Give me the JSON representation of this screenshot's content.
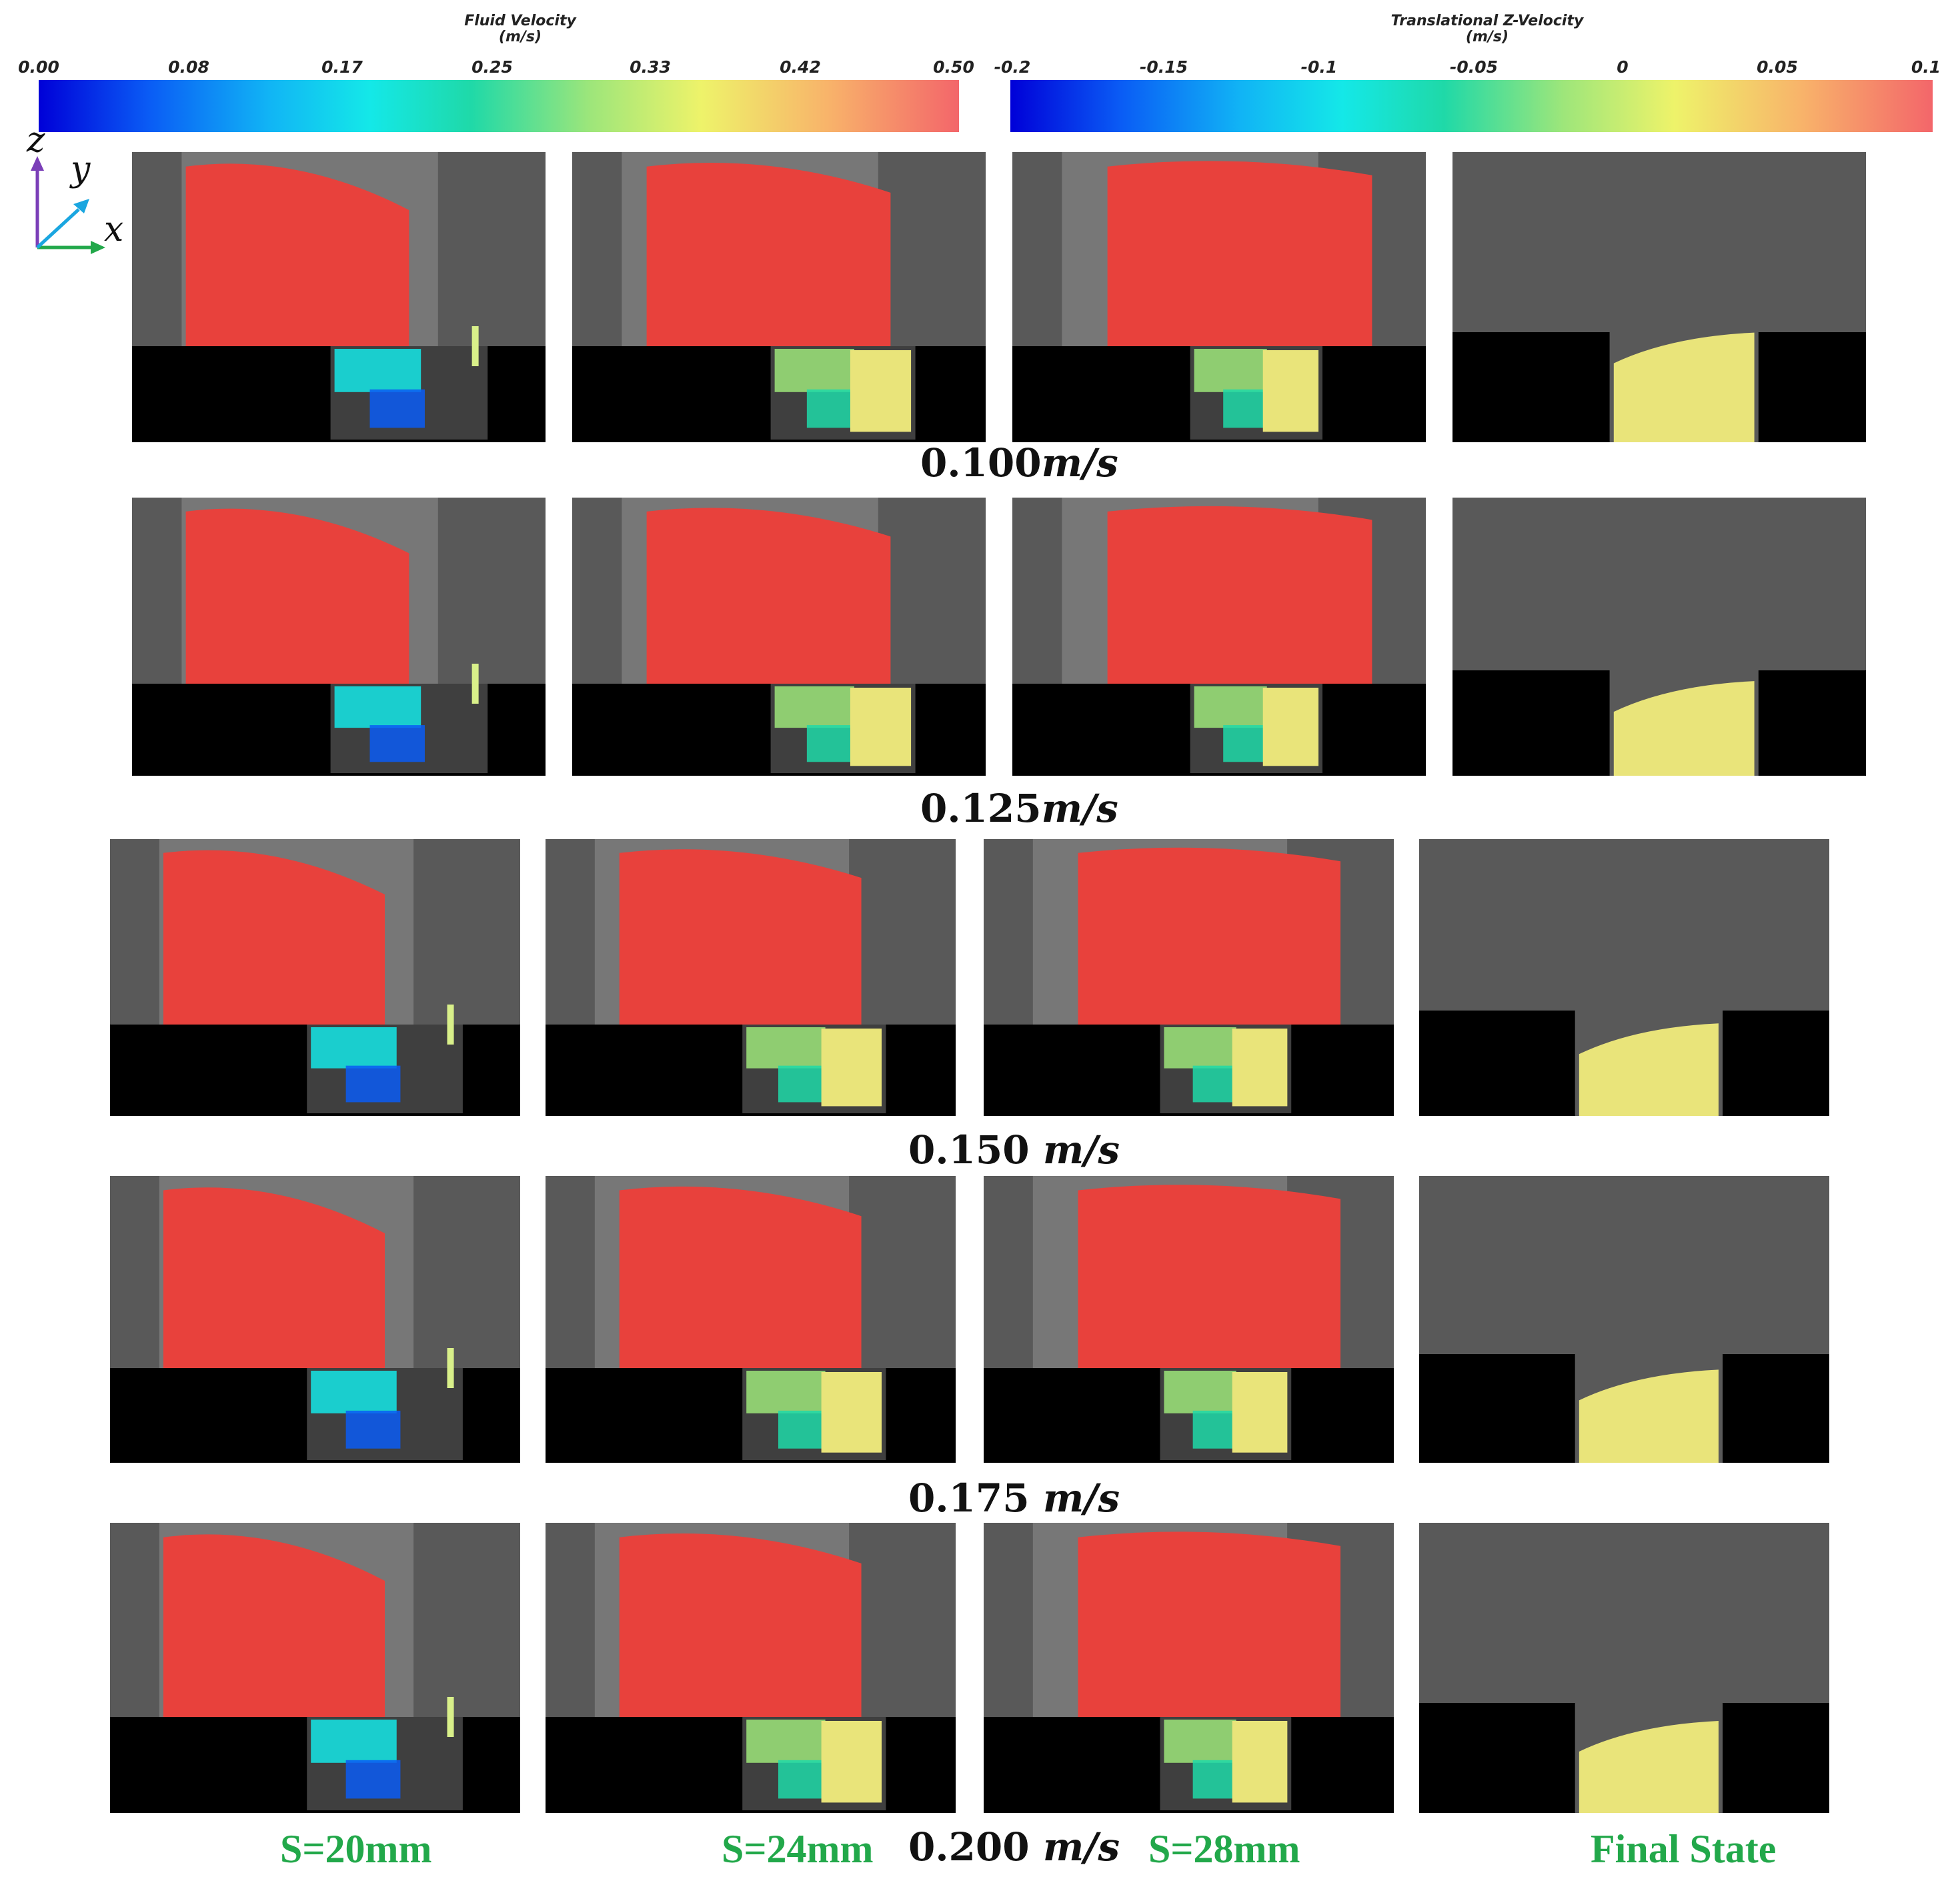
{
  "colorbars": [
    {
      "title_line1": "Fluid Velocity",
      "title_line2": "(m/s)",
      "ticks": [
        "0.00",
        "0.08",
        "0.17",
        "0.25",
        "0.33",
        "0.42",
        "0.50"
      ]
    },
    {
      "title_line1": "Translational Z-Velocity",
      "title_line2": "(m/s)",
      "ticks": [
        "-0.2",
        "-0.15",
        "-0.1",
        "-0.05",
        "0",
        "0.05",
        "0.1"
      ]
    }
  ],
  "axes": {
    "z": "z",
    "y": "y",
    "x": "x"
  },
  "rows": [
    {
      "velocity_value": "0.100",
      "velocity_unit": "m/s"
    },
    {
      "velocity_value": "0.125",
      "velocity_unit": "m/s"
    },
    {
      "velocity_value": "0.150 ",
      "velocity_unit": "m/s"
    },
    {
      "velocity_value": "0.175 ",
      "velocity_unit": "m/s"
    },
    {
      "velocity_value": "0.200 ",
      "velocity_unit": "m/s"
    }
  ],
  "columns": [
    "S=20mm",
    "S=24mm",
    "S=28mm",
    "Final State"
  ],
  "colors": {
    "particle_red": "#e8413c",
    "particle_yellow": "#e9e47a",
    "background_gray": "#777777",
    "channel_black": "#000000",
    "label_green": "#22a84a"
  }
}
